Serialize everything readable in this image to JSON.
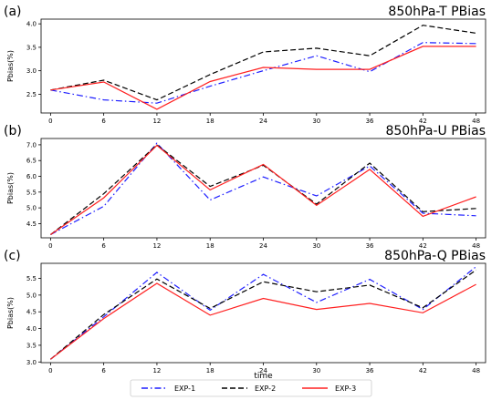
{
  "chart_data": {
    "type": "line",
    "shared_xlabel": "time",
    "x": [
      0,
      6,
      12,
      18,
      24,
      30,
      36,
      42,
      48
    ],
    "legend": {
      "placement": "bottom-center",
      "entries": [
        {
          "name": "EXP-1",
          "color": "#1f1fff",
          "dash": "dashdot"
        },
        {
          "name": "EXP-2",
          "color": "#000000",
          "dash": "dashed"
        },
        {
          "name": "EXP-3",
          "color": "#ff2020",
          "dash": "solid"
        }
      ]
    },
    "panels": [
      {
        "panel_label": "(a)",
        "title": "850hPa-T PBias",
        "ylabel": "Pbias(%)",
        "ylim": [
          2.1,
          4.1
        ],
        "yticks": [
          2.5,
          3.0,
          3.5,
          4.0
        ],
        "ytick_labels": [
          "2.5",
          "3.0",
          "3.5",
          "4.0"
        ],
        "series": [
          {
            "name": "EXP-1",
            "values": [
              2.59,
              2.38,
              2.31,
              2.67,
              3.0,
              3.32,
              2.98,
              3.6,
              3.58
            ]
          },
          {
            "name": "EXP-2",
            "values": [
              2.59,
              2.8,
              2.38,
              2.92,
              3.4,
              3.48,
              3.32,
              3.97,
              3.8
            ]
          },
          {
            "name": "EXP-3",
            "values": [
              2.59,
              2.76,
              2.18,
              2.77,
              3.07,
              3.03,
              3.03,
              3.52,
              3.52
            ]
          }
        ]
      },
      {
        "panel_label": "(b)",
        "title": "850hPa-U PBias",
        "ylabel": "Pbias(%)",
        "ylim": [
          4.05,
          7.2
        ],
        "yticks": [
          4.5,
          5.0,
          5.5,
          6.0,
          6.5,
          7.0
        ],
        "ytick_labels": [
          "4.5",
          "5.0",
          "5.5",
          "6.0",
          "6.5",
          "7.0"
        ],
        "series": [
          {
            "name": "EXP-1",
            "values": [
              4.15,
              5.05,
              7.05,
              5.25,
              5.98,
              5.38,
              6.33,
              4.83,
              4.75
            ]
          },
          {
            "name": "EXP-2",
            "values": [
              4.15,
              5.45,
              7.0,
              5.68,
              6.35,
              5.12,
              6.42,
              4.88,
              4.98
            ]
          },
          {
            "name": "EXP-3",
            "values": [
              4.15,
              5.32,
              6.98,
              5.57,
              6.38,
              5.08,
              6.22,
              4.73,
              5.35
            ]
          }
        ]
      },
      {
        "panel_label": "(c)",
        "title": "850hPa-Q PBias",
        "ylabel": "Pbias(%)",
        "ylim": [
          2.98,
          5.95
        ],
        "yticks": [
          3.0,
          3.5,
          4.0,
          4.5,
          5.0,
          5.5
        ],
        "ytick_labels": [
          "3.0",
          "3.5",
          "4.0",
          "4.5",
          "5.0",
          "5.5"
        ],
        "series": [
          {
            "name": "EXP-1",
            "values": [
              3.08,
              4.35,
              5.68,
              4.55,
              5.62,
              4.78,
              5.47,
              4.57,
              5.85
            ]
          },
          {
            "name": "EXP-2",
            "values": [
              3.08,
              4.42,
              5.48,
              4.6,
              5.4,
              5.1,
              5.3,
              4.62,
              5.75
            ]
          },
          {
            "name": "EXP-3",
            "values": [
              3.08,
              4.3,
              5.35,
              4.4,
              4.9,
              4.57,
              4.75,
              4.47,
              5.32
            ]
          }
        ]
      }
    ]
  }
}
